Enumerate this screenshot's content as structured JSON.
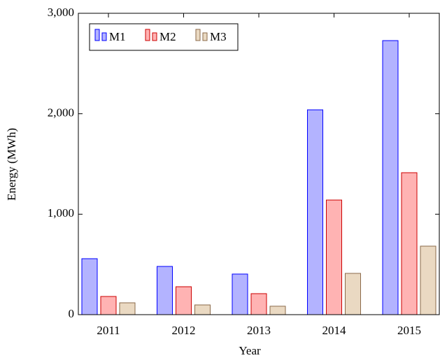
{
  "chart_data": {
    "type": "bar",
    "categories": [
      "2011",
      "2012",
      "2013",
      "2014",
      "2015"
    ],
    "series": [
      {
        "name": "M1",
        "color": "#b3b3ff",
        "stroke": "#0000ff",
        "values": [
          557,
          480,
          404,
          2039,
          2728
        ]
      },
      {
        "name": "M2",
        "color": "#ffb3b3",
        "stroke": "#cc0000",
        "values": [
          181,
          278,
          209,
          1141,
          1413
        ]
      },
      {
        "name": "M3",
        "color": "#ead9c2",
        "stroke": "#8b6a4a",
        "values": [
          118,
          97,
          84,
          411,
          682
        ]
      }
    ],
    "xlabel": "Year",
    "ylabel": "Energy (MWh)",
    "ylim": [
      0,
      3000
    ],
    "yticks": [
      0,
      {
        "value": 1000,
        "label": "1,000"
      },
      {
        "value": 2000,
        "label": "2,000"
      },
      {
        "value": 3000,
        "label": "3,000"
      }
    ],
    "legend": "north west",
    "grid": false
  }
}
